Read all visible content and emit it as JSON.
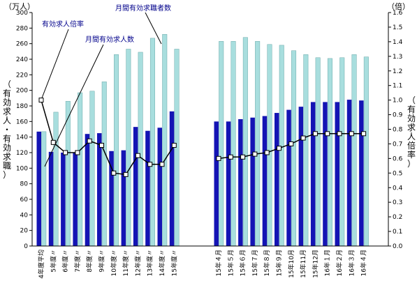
{
  "chart_data": {
    "type": "bar",
    "left_unit": "（万人）",
    "right_unit": "（倍）",
    "left_axis_title": "（有効求人・有効求職）",
    "right_axis_title": "（有効求人倍率）",
    "left_ylim": [
      0,
      300
    ],
    "left_ticks": [
      0,
      20,
      40,
      60,
      80,
      100,
      120,
      140,
      160,
      180,
      200,
      220,
      240,
      260,
      280,
      300
    ],
    "right_ylim": [
      0.0,
      1.6
    ],
    "right_ticks": [
      "0.0",
      "0.1",
      "0.2",
      "0.3",
      "0.4",
      "0.5",
      "0.6",
      "0.7",
      "0.8",
      "0.9",
      "1.0",
      "1.1",
      "1.2",
      "1.3",
      "1.4",
      "1.5",
      "1.6"
    ],
    "grid": false,
    "labels": {
      "seekers": "月間有効求職者数",
      "openings": "月間有効求人数",
      "ratio": "有効求人倍率"
    },
    "colors": {
      "seekers": "#a8dede",
      "openings": "#1414b4",
      "ratio_line": "#000000",
      "label_text": "#00008b"
    },
    "categories": [
      "4年度平均",
      "5年度〃",
      "6年度〃",
      "7年度〃",
      "8年度〃",
      "9年度〃",
      "10年度〃",
      "11年度〃",
      "12年度〃",
      "13年度〃",
      "14年度〃",
      "15年度〃",
      "15年４月",
      "15年５月",
      "15年６月",
      "15年７月",
      "15年８月",
      "15年９月",
      "15年10月",
      "15年11月",
      "15年12月",
      "16年１月",
      "16年２月",
      "16年３月",
      "16年４月"
    ],
    "group_break_after": 11,
    "series": [
      {
        "key": "seekers",
        "values": [
          147,
          172,
          186,
          197,
          199,
          211,
          246,
          253,
          249,
          267,
          272,
          253,
          263,
          263,
          268,
          263,
          259,
          258,
          251,
          246,
          242,
          241,
          242,
          246,
          243
        ]
      },
      {
        "key": "openings",
        "values": [
          147,
          121,
          120,
          120,
          144,
          145,
          122,
          123,
          153,
          148,
          152,
          173,
          160,
          160,
          163,
          165,
          167,
          171,
          175,
          179,
          185,
          185,
          185,
          188,
          187
        ]
      },
      {
        "key": "ratio",
        "values": [
          1.0,
          0.71,
          0.64,
          0.64,
          0.72,
          0.69,
          0.5,
          0.49,
          0.62,
          0.56,
          0.56,
          0.69,
          0.6,
          0.61,
          0.61,
          0.63,
          0.64,
          0.67,
          0.7,
          0.74,
          0.77,
          0.77,
          0.77,
          0.77,
          0.77
        ]
      }
    ]
  }
}
